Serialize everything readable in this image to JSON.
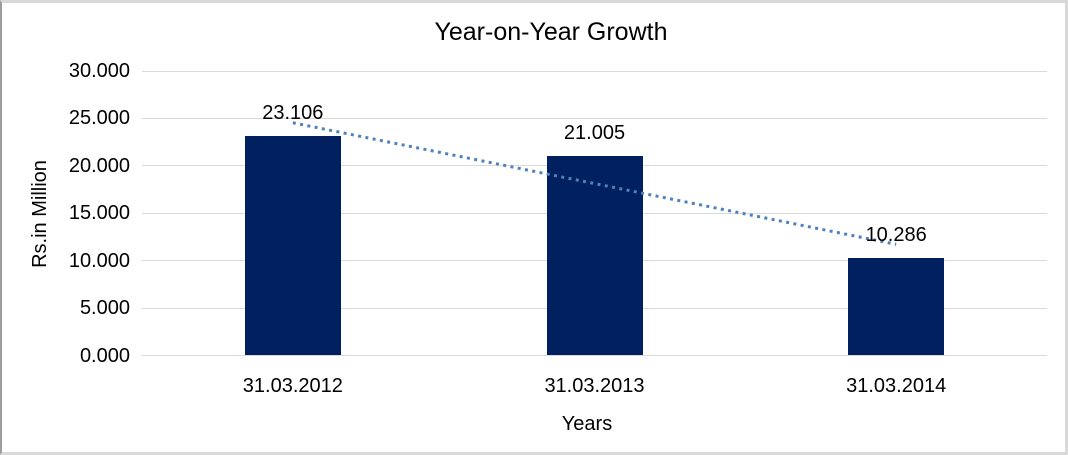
{
  "chart_data": {
    "type": "bar",
    "title": "Year-on-Year Growth",
    "xlabel": "Years",
    "ylabel": "Rs.in Million",
    "categories": [
      "31.03.2012",
      "31.03.2013",
      "31.03.2014"
    ],
    "values": [
      23.106,
      21.005,
      10.286
    ],
    "data_labels": [
      "23.106",
      "21.005",
      "10.286"
    ],
    "ylim": [
      0,
      30
    ],
    "yticks": [
      {
        "value": 0,
        "label": "0.000"
      },
      {
        "value": 5,
        "label": "5.000"
      },
      {
        "value": 10,
        "label": "10.000"
      },
      {
        "value": 15,
        "label": "15.000"
      },
      {
        "value": 20,
        "label": "20.000"
      },
      {
        "value": 25,
        "label": "25.000"
      },
      {
        "value": 30,
        "label": "30.000"
      }
    ],
    "grid": true,
    "legend": "none",
    "trendline": {
      "type": "linear",
      "style": "dotted",
      "fitted_values": [
        24.542,
        18.132,
        11.722
      ]
    },
    "colors": {
      "bar": "#002060",
      "trendline": "#4F81BD",
      "gridline": "#D9D9D9",
      "text": "#000000"
    }
  }
}
